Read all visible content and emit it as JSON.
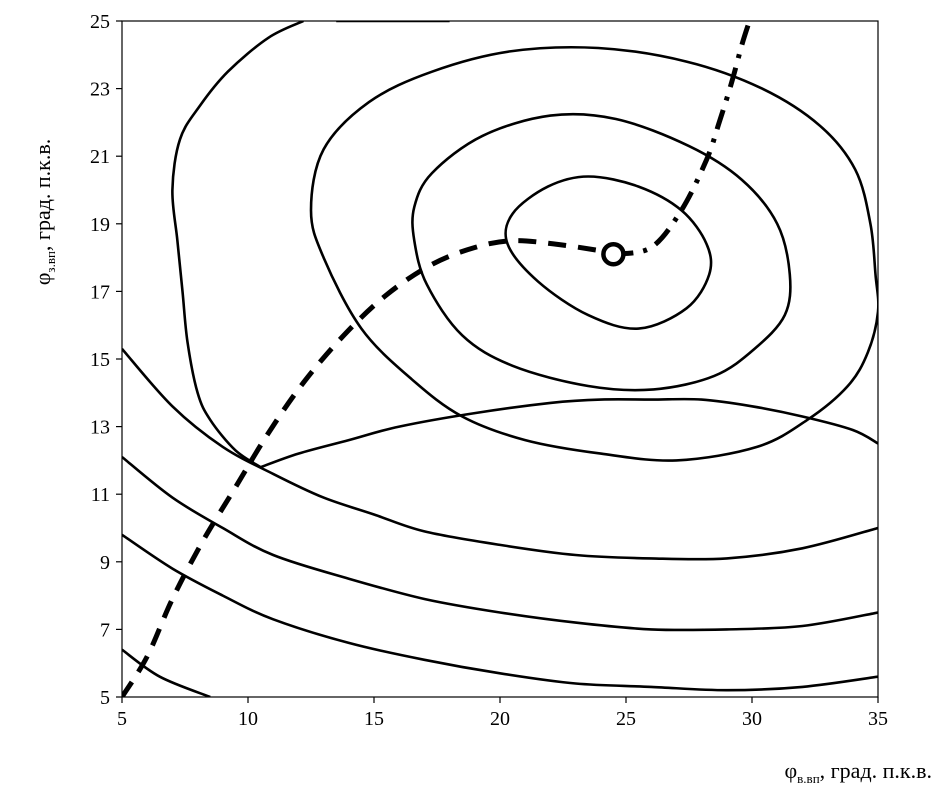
{
  "chart_data": {
    "type": "contour",
    "xlabel": {
      "symbol": "φ",
      "subscript": "в.вп",
      "rest": ", град. п.к.в."
    },
    "ylabel": {
      "symbol": "φ",
      "subscript": "з.вп",
      "rest": ", град. п.к.в."
    },
    "xlim": [
      5,
      35
    ],
    "ylim": [
      5,
      25
    ],
    "x_ticks": [
      "5",
      "10",
      "15",
      "20",
      "25",
      "30",
      "35"
    ],
    "y_ticks": [
      "5",
      "7",
      "9",
      "11",
      "13",
      "15",
      "17",
      "19",
      "21",
      "23",
      "25"
    ],
    "grid": false,
    "colors": {
      "line": "#000000",
      "background": "#ffffff"
    },
    "contours": [
      {
        "points": [
          [
            25.5,
            15.9
          ],
          [
            23.5,
            16.3
          ],
          [
            21.5,
            17.3
          ],
          [
            20.3,
            18.4
          ],
          [
            20.5,
            19.3
          ],
          [
            21.9,
            20.1
          ],
          [
            23.5,
            20.4
          ],
          [
            25.5,
            20.1
          ],
          [
            27.2,
            19.4
          ],
          [
            28.2,
            18.4
          ],
          [
            28.3,
            17.5
          ],
          [
            27.4,
            16.5
          ]
        ],
        "closed": true
      },
      {
        "points": [
          [
            26.1,
            14.1
          ],
          [
            23.5,
            14.2
          ],
          [
            20.5,
            14.8
          ],
          [
            18.5,
            15.7
          ],
          [
            17.1,
            17.2
          ],
          [
            16.6,
            18.5
          ],
          [
            16.6,
            19.5
          ],
          [
            17.3,
            20.5
          ],
          [
            19.3,
            21.6
          ],
          [
            22.0,
            22.2
          ],
          [
            24.6,
            22.1
          ],
          [
            27.5,
            21.3
          ],
          [
            29.6,
            20.3
          ],
          [
            31.0,
            19.0
          ],
          [
            31.5,
            17.5
          ],
          [
            31.3,
            16.3
          ],
          [
            30.1,
            15.3
          ],
          [
            28.5,
            14.5
          ]
        ],
        "closed": true
      },
      {
        "points": [
          [
            27.0,
            12.0
          ],
          [
            24.0,
            12.2
          ],
          [
            21.0,
            12.6
          ],
          [
            18.5,
            13.3
          ],
          [
            16.5,
            14.4
          ],
          [
            14.5,
            15.9
          ],
          [
            13.0,
            18.0
          ],
          [
            12.5,
            19.4
          ],
          [
            13.0,
            21.2
          ],
          [
            14.8,
            22.6
          ],
          [
            17.3,
            23.5
          ],
          [
            20.4,
            24.1
          ],
          [
            23.9,
            24.2
          ],
          [
            27.4,
            23.8
          ],
          [
            30.4,
            23.0
          ],
          [
            32.7,
            21.9
          ],
          [
            34.1,
            20.6
          ],
          [
            34.7,
            19.0
          ],
          [
            34.9,
            17.5
          ],
          [
            35.0,
            16.4
          ],
          [
            34.6,
            15.2
          ],
          [
            33.8,
            14.2
          ],
          [
            32.2,
            13.2
          ],
          [
            30.2,
            12.4
          ]
        ],
        "closed": true
      },
      {
        "points": [
          [
            5.0,
            15.3
          ],
          [
            7.0,
            13.6
          ],
          [
            9.0,
            12.4
          ],
          [
            11.0,
            11.6
          ],
          [
            13.0,
            10.9
          ],
          [
            15.0,
            10.4
          ],
          [
            17.0,
            9.9
          ],
          [
            20.0,
            9.5
          ],
          [
            23.0,
            9.2
          ],
          [
            26.0,
            9.1
          ],
          [
            29.0,
            9.1
          ],
          [
            32.0,
            9.4
          ],
          [
            35.0,
            10.0
          ]
        ],
        "closed": false
      },
      {
        "points": [
          [
            35.0,
            12.5
          ],
          [
            34.0,
            12.9
          ],
          [
            32.0,
            13.3
          ],
          [
            30.0,
            13.6
          ],
          [
            28.0,
            13.8
          ],
          [
            26.0,
            13.8
          ],
          [
            24.0,
            13.8
          ],
          [
            22.0,
            13.7
          ],
          [
            19.0,
            13.4
          ],
          [
            16.0,
            13.0
          ],
          [
            14.0,
            12.6
          ],
          [
            12.0,
            12.2
          ],
          [
            10.5,
            11.8
          ]
        ],
        "closed": false
      },
      {
        "points": [
          [
            10.5,
            11.8
          ],
          [
            9.5,
            12.3
          ],
          [
            8.5,
            13.2
          ],
          [
            8.0,
            14.0
          ],
          [
            7.6,
            15.5
          ],
          [
            7.4,
            17.0
          ],
          [
            7.2,
            18.5
          ],
          [
            7.0,
            20.0
          ],
          [
            7.3,
            21.5
          ],
          [
            8.1,
            22.5
          ],
          [
            9.2,
            23.5
          ],
          [
            10.8,
            24.5
          ],
          [
            12.2,
            25.0
          ]
        ],
        "closed": false
      },
      {
        "points": [
          [
            5.0,
            12.1
          ],
          [
            7.0,
            10.9
          ],
          [
            9.0,
            10.0
          ],
          [
            11.0,
            9.2
          ],
          [
            14.0,
            8.5
          ],
          [
            17.0,
            7.9
          ],
          [
            20.0,
            7.5
          ],
          [
            23.0,
            7.2
          ],
          [
            26.0,
            7.0
          ],
          [
            29.0,
            7.0
          ],
          [
            32.0,
            7.1
          ],
          [
            35.0,
            7.5
          ]
        ],
        "closed": false
      },
      {
        "points": [
          [
            5.0,
            9.8
          ],
          [
            7.0,
            8.8
          ],
          [
            9.0,
            8.0
          ],
          [
            11.0,
            7.3
          ],
          [
            14.0,
            6.6
          ],
          [
            17.0,
            6.1
          ],
          [
            20.0,
            5.7
          ],
          [
            23.0,
            5.4
          ],
          [
            26.0,
            5.3
          ],
          [
            29.0,
            5.2
          ],
          [
            32.0,
            5.3
          ],
          [
            35.0,
            5.6
          ]
        ],
        "closed": false
      },
      {
        "points": [
          [
            5.0,
            6.4
          ],
          [
            6.5,
            5.6
          ],
          [
            8.5,
            5.0
          ]
        ],
        "closed": false
      },
      {
        "points": [
          [
            13.5,
            25.0
          ],
          [
            18.0,
            25.0
          ]
        ],
        "closed": false
      }
    ],
    "optimum_path": {
      "style": "dashed",
      "points": [
        [
          5.0,
          5.0
        ],
        [
          6.0,
          6.2
        ],
        [
          7.0,
          7.9
        ],
        [
          8.2,
          9.6
        ],
        [
          9.5,
          11.2
        ],
        [
          10.8,
          12.8
        ],
        [
          12.2,
          14.3
        ],
        [
          13.8,
          15.7
        ],
        [
          15.5,
          16.9
        ],
        [
          17.3,
          17.8
        ],
        [
          19.0,
          18.3
        ],
        [
          20.5,
          18.5
        ],
        [
          22.2,
          18.4
        ],
        [
          24.0,
          18.2
        ],
        [
          24.5,
          18.1
        ]
      ]
    },
    "optimum_branch": {
      "style": "dash-dot",
      "points": [
        [
          24.5,
          18.1
        ],
        [
          26.0,
          18.3
        ],
        [
          27.2,
          19.4
        ],
        [
          28.2,
          20.9
        ],
        [
          28.7,
          22.0
        ],
        [
          29.2,
          23.2
        ],
        [
          29.6,
          24.3
        ],
        [
          29.9,
          25.0
        ]
      ]
    },
    "optimum_point": {
      "x": 24.5,
      "y": 18.1
    }
  }
}
